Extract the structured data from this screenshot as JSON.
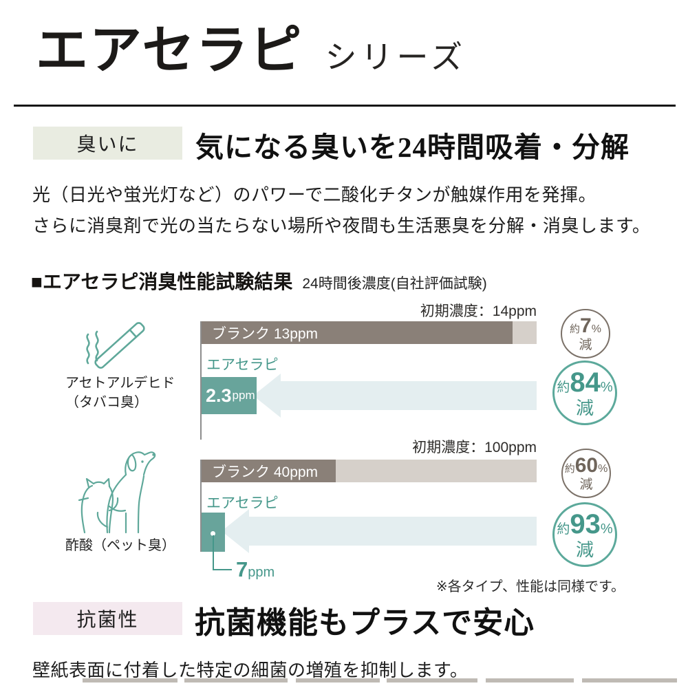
{
  "header": {
    "title": "エアセラピ",
    "suffix": "シリーズ"
  },
  "odor": {
    "badge": "臭いに",
    "heading": "気になる臭いを24時間吸着・分解",
    "body1": "光（日光や蛍光灯など）のパワーで二酸化チタンが触媒作用を発揮。",
    "body2": "さらに消臭剤で光の当たらない場所や夜間も生活悪臭を分解・消臭します。"
  },
  "results": {
    "heading": "■エアセラピ消臭性能試験結果",
    "subheading": "24時間後濃度(自社評価試験)",
    "note": "※各タイプ、性能は同様です。"
  },
  "chart_data": [
    {
      "type": "bar",
      "category": "アセトアルデヒド",
      "category_sub": "（タバコ臭）",
      "icon": "cigarette-icon",
      "initial_label": "初期濃度：14ppm",
      "initial_ppm": 14,
      "xlabel": "",
      "ylabel": "",
      "unit": "ppm",
      "blank": {
        "label": "ブランク 13ppm",
        "ppm": 13,
        "reduction": {
          "prefix": "約",
          "number": "7",
          "unit": "%",
          "suffix": "減"
        }
      },
      "product": {
        "series_label": "エアセラピ",
        "value_number": "2.3",
        "value_unit": "ppm",
        "ppm": 2.3,
        "reduction": {
          "prefix": "約",
          "number": "84",
          "unit": "%",
          "suffix": "減"
        }
      }
    },
    {
      "type": "bar",
      "category": "酢酸（ペット臭）",
      "category_sub": "",
      "icon": "dog-cat-icon",
      "initial_label": "初期濃度：100ppm",
      "initial_ppm": 100,
      "xlabel": "",
      "ylabel": "",
      "unit": "ppm",
      "blank": {
        "label": "ブランク 40ppm",
        "ppm": 40,
        "reduction": {
          "prefix": "約",
          "number": "60",
          "unit": "%",
          "suffix": "減"
        }
      },
      "product": {
        "series_label": "エアセラピ",
        "value_number": "7",
        "value_unit": "ppm",
        "ppm": 7,
        "reduction": {
          "prefix": "約",
          "number": "93",
          "unit": "%",
          "suffix": "減"
        }
      }
    }
  ],
  "antibacterial": {
    "badge": "抗菌性",
    "heading": "抗菌機能もプラスで安心",
    "body": "壁紙表面に付着した特定の細菌の増殖を抑制します。"
  },
  "colors": {
    "teal_bar": "#68a49b",
    "teal_text": "#45978a",
    "teal_outline": "#5ca99b",
    "blank_bar": "#8a8078",
    "blank_track": "#d6d0ca",
    "arrow_fill": "#e4eef0",
    "taupe_circle": "#7b7168",
    "badge_green_bg": "#e9ece1",
    "badge_pink_bg": "#f4e9ef"
  }
}
